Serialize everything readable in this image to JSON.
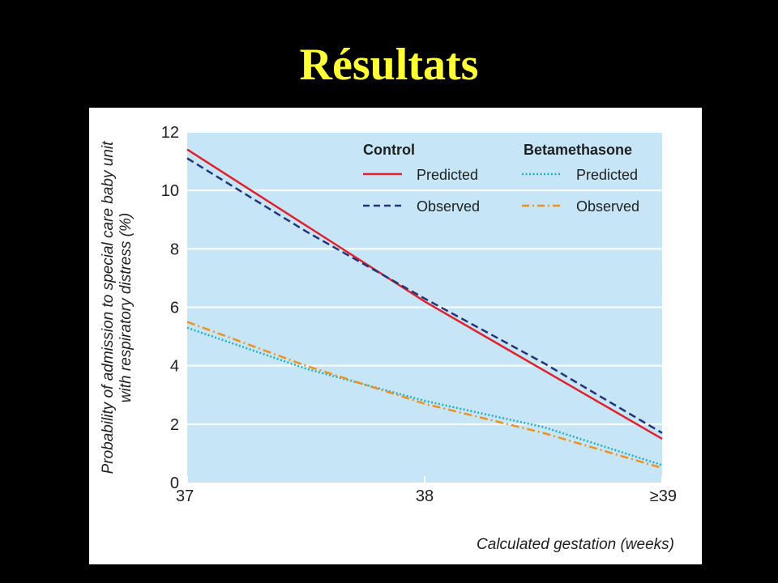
{
  "slide": {
    "title": "Résultats"
  },
  "colors": {
    "background": "#000000",
    "title": "#ffff33",
    "plot_area": "#c6e6f7",
    "gridline": "#ffffff",
    "control_predicted": "#e0202a",
    "control_observed": "#24347a",
    "beta_predicted": "#1fb0c0",
    "beta_observed": "#f0901e"
  },
  "legend": {
    "position": "top-right",
    "groups": [
      {
        "name": "Control",
        "items": [
          "Predicted",
          "Observed"
        ]
      },
      {
        "name": "Betamethasone",
        "items": [
          "Predicted",
          "Observed"
        ]
      }
    ]
  },
  "chart_data": {
    "type": "line",
    "xlabel": "Calculated gestation (weeks)",
    "ylabel_lines": [
      "Probability of admission to special care baby unit",
      "with respiratory distress (%)"
    ],
    "x_ticks": [
      "37",
      "38",
      "≥39"
    ],
    "x": [
      37,
      38,
      39
    ],
    "xlim": [
      37,
      39
    ],
    "ylim": [
      0,
      12
    ],
    "y_ticks": [
      0,
      2,
      4,
      6,
      8,
      10,
      12
    ],
    "grid": "horizontal",
    "series": [
      {
        "name": "Predicted",
        "group": "Control",
        "style": "solid",
        "color": "#e0202a",
        "x": [
          37,
          38,
          39
        ],
        "y": [
          11.4,
          6.2,
          1.5
        ]
      },
      {
        "name": "Observed",
        "group": "Control",
        "style": "dashed",
        "color": "#24347a",
        "x": [
          37,
          37.5,
          38,
          38.5,
          39
        ],
        "y": [
          11.1,
          8.6,
          6.3,
          4.1,
          1.7
        ]
      },
      {
        "name": "Predicted",
        "group": "Betamethasone",
        "style": "dotted",
        "color": "#1fb0c0",
        "x": [
          37,
          37.5,
          38,
          38.5,
          39
        ],
        "y": [
          5.3,
          3.9,
          2.8,
          1.9,
          0.6
        ]
      },
      {
        "name": "Observed",
        "group": "Betamethasone",
        "style": "dashdot",
        "color": "#f0901e",
        "x": [
          37,
          37.5,
          38,
          38.5,
          39
        ],
        "y": [
          5.5,
          4.0,
          2.7,
          1.7,
          0.5
        ]
      }
    ]
  }
}
